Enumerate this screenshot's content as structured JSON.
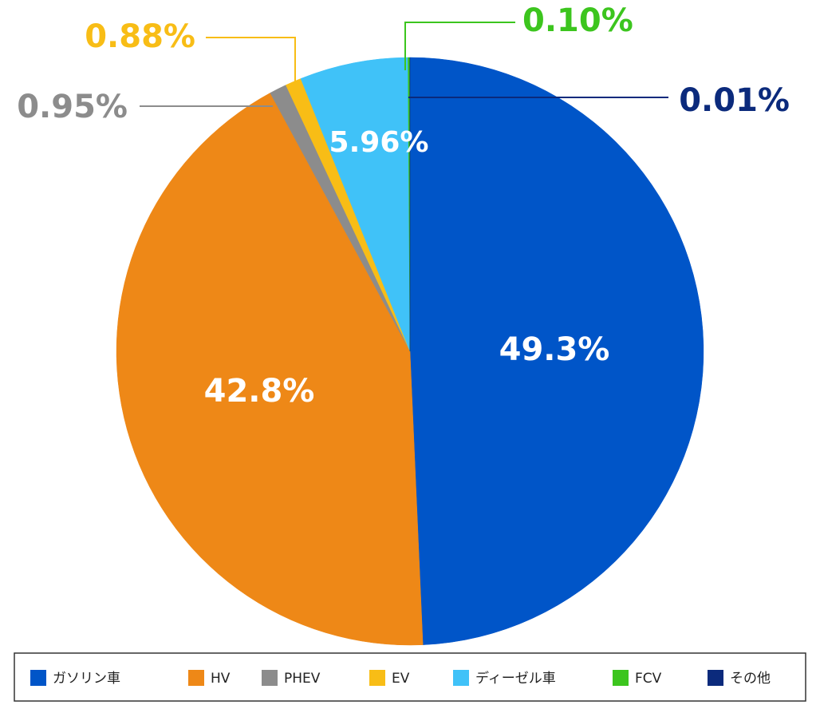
{
  "chart_data": {
    "type": "pie",
    "categories": [
      "ガソリン車",
      "HV",
      "PHEV",
      "EV",
      "ディーゼル車",
      "FCV",
      "その他"
    ],
    "values": [
      49.3,
      42.8,
      0.95,
      0.88,
      5.96,
      0.1,
      0.01
    ],
    "value_labels": [
      "49.3%",
      "42.8%",
      "0.95%",
      "0.88%",
      "5.96%",
      "0.10%",
      "0.01%"
    ],
    "colors": [
      "#0055c8",
      "#ee8817",
      "#8c8c8c",
      "#f8bd16",
      "#40c2f8",
      "#3cc51e",
      "#0b2a7c"
    ],
    "legend": "bottom"
  }
}
